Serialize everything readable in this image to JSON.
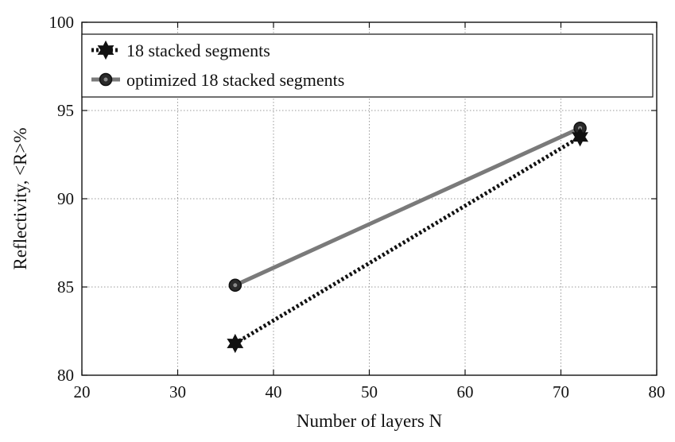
{
  "chart_data": {
    "type": "line",
    "title": "",
    "xlabel": "Number of  layers N",
    "ylabel": "Reflectivity, <R>%",
    "xlim": [
      20,
      80
    ],
    "ylim": [
      80,
      100
    ],
    "xticks": [
      "20",
      "30",
      "40",
      "50",
      "60",
      "70",
      "80"
    ],
    "yticks": [
      "80",
      "85",
      "90",
      "95",
      "100"
    ],
    "grid": true,
    "legend_position": "top",
    "series": [
      {
        "name": "18 stacked segments",
        "x": [
          36,
          72
        ],
        "y": [
          81.8,
          93.5
        ],
        "color": "#111111",
        "line_style": "dotted",
        "marker": "star"
      },
      {
        "name": "optimized 18  stacked segments",
        "x": [
          36,
          72
        ],
        "y": [
          85.1,
          94.0
        ],
        "color": "#7a7a7a",
        "line_style": "solid",
        "marker": "circle"
      }
    ]
  }
}
